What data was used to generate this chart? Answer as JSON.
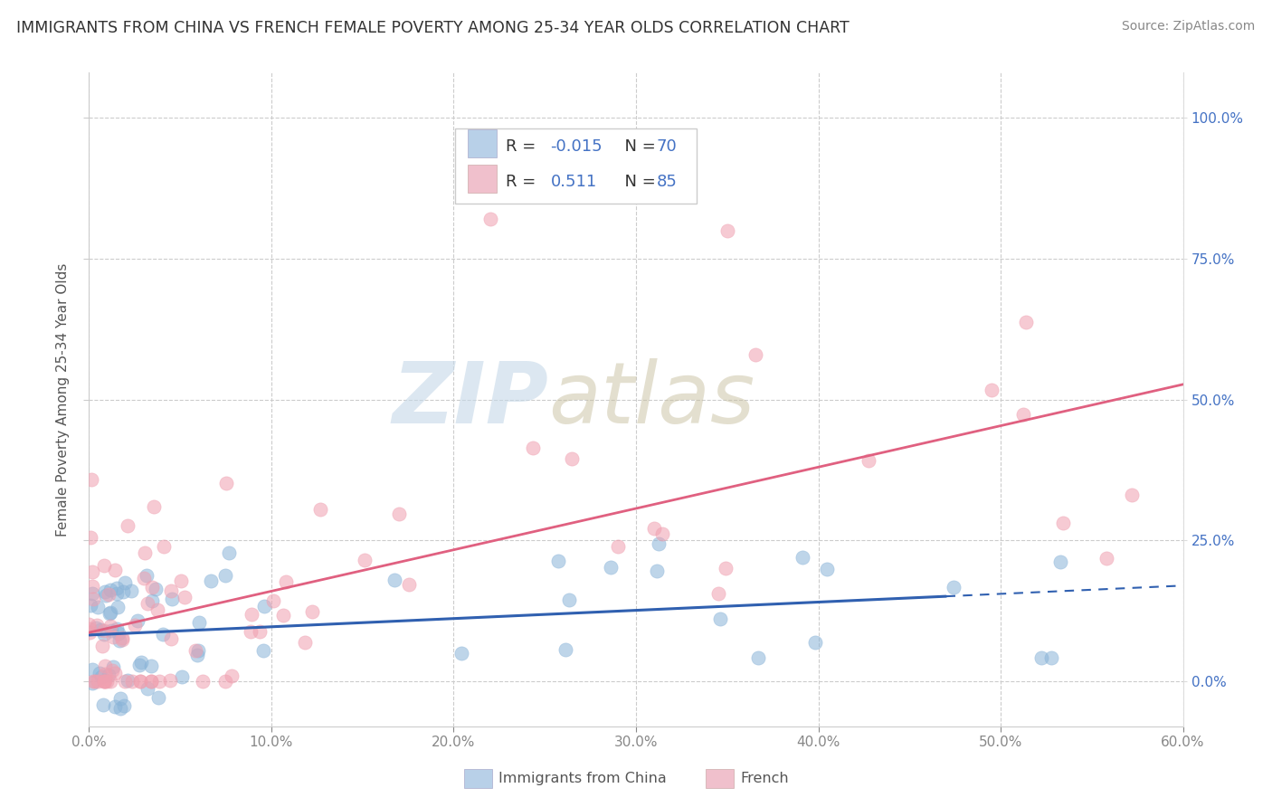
{
  "title": "IMMIGRANTS FROM CHINA VS FRENCH FEMALE POVERTY AMONG 25-34 YEAR OLDS CORRELATION CHART",
  "source": "Source: ZipAtlas.com",
  "ylabel_left": "Female Poverty Among 25-34 Year Olds",
  "blue_color": "#8ab4d8",
  "pink_color": "#f0a0b0",
  "blue_line_color": "#3060b0",
  "pink_line_color": "#e06080",
  "background_color": "#ffffff",
  "grid_color": "#cccccc",
  "watermark_zip": "ZIP",
  "watermark_atlas": "atlas",
  "watermark_color_zip": "#c8d8e8",
  "watermark_color_atlas": "#d0c8b0",
  "china_R": -0.015,
  "china_N": 70,
  "french_R": 0.511,
  "french_N": 85,
  "x_min": 0.0,
  "x_max": 60.0,
  "y_min": -8.0,
  "y_max": 108.0,
  "legend_blue_facecolor": "#b8d0e8",
  "legend_pink_facecolor": "#f0c0cc",
  "text_dark": "#333333",
  "text_blue": "#4472c4",
  "text_gray": "#888888"
}
